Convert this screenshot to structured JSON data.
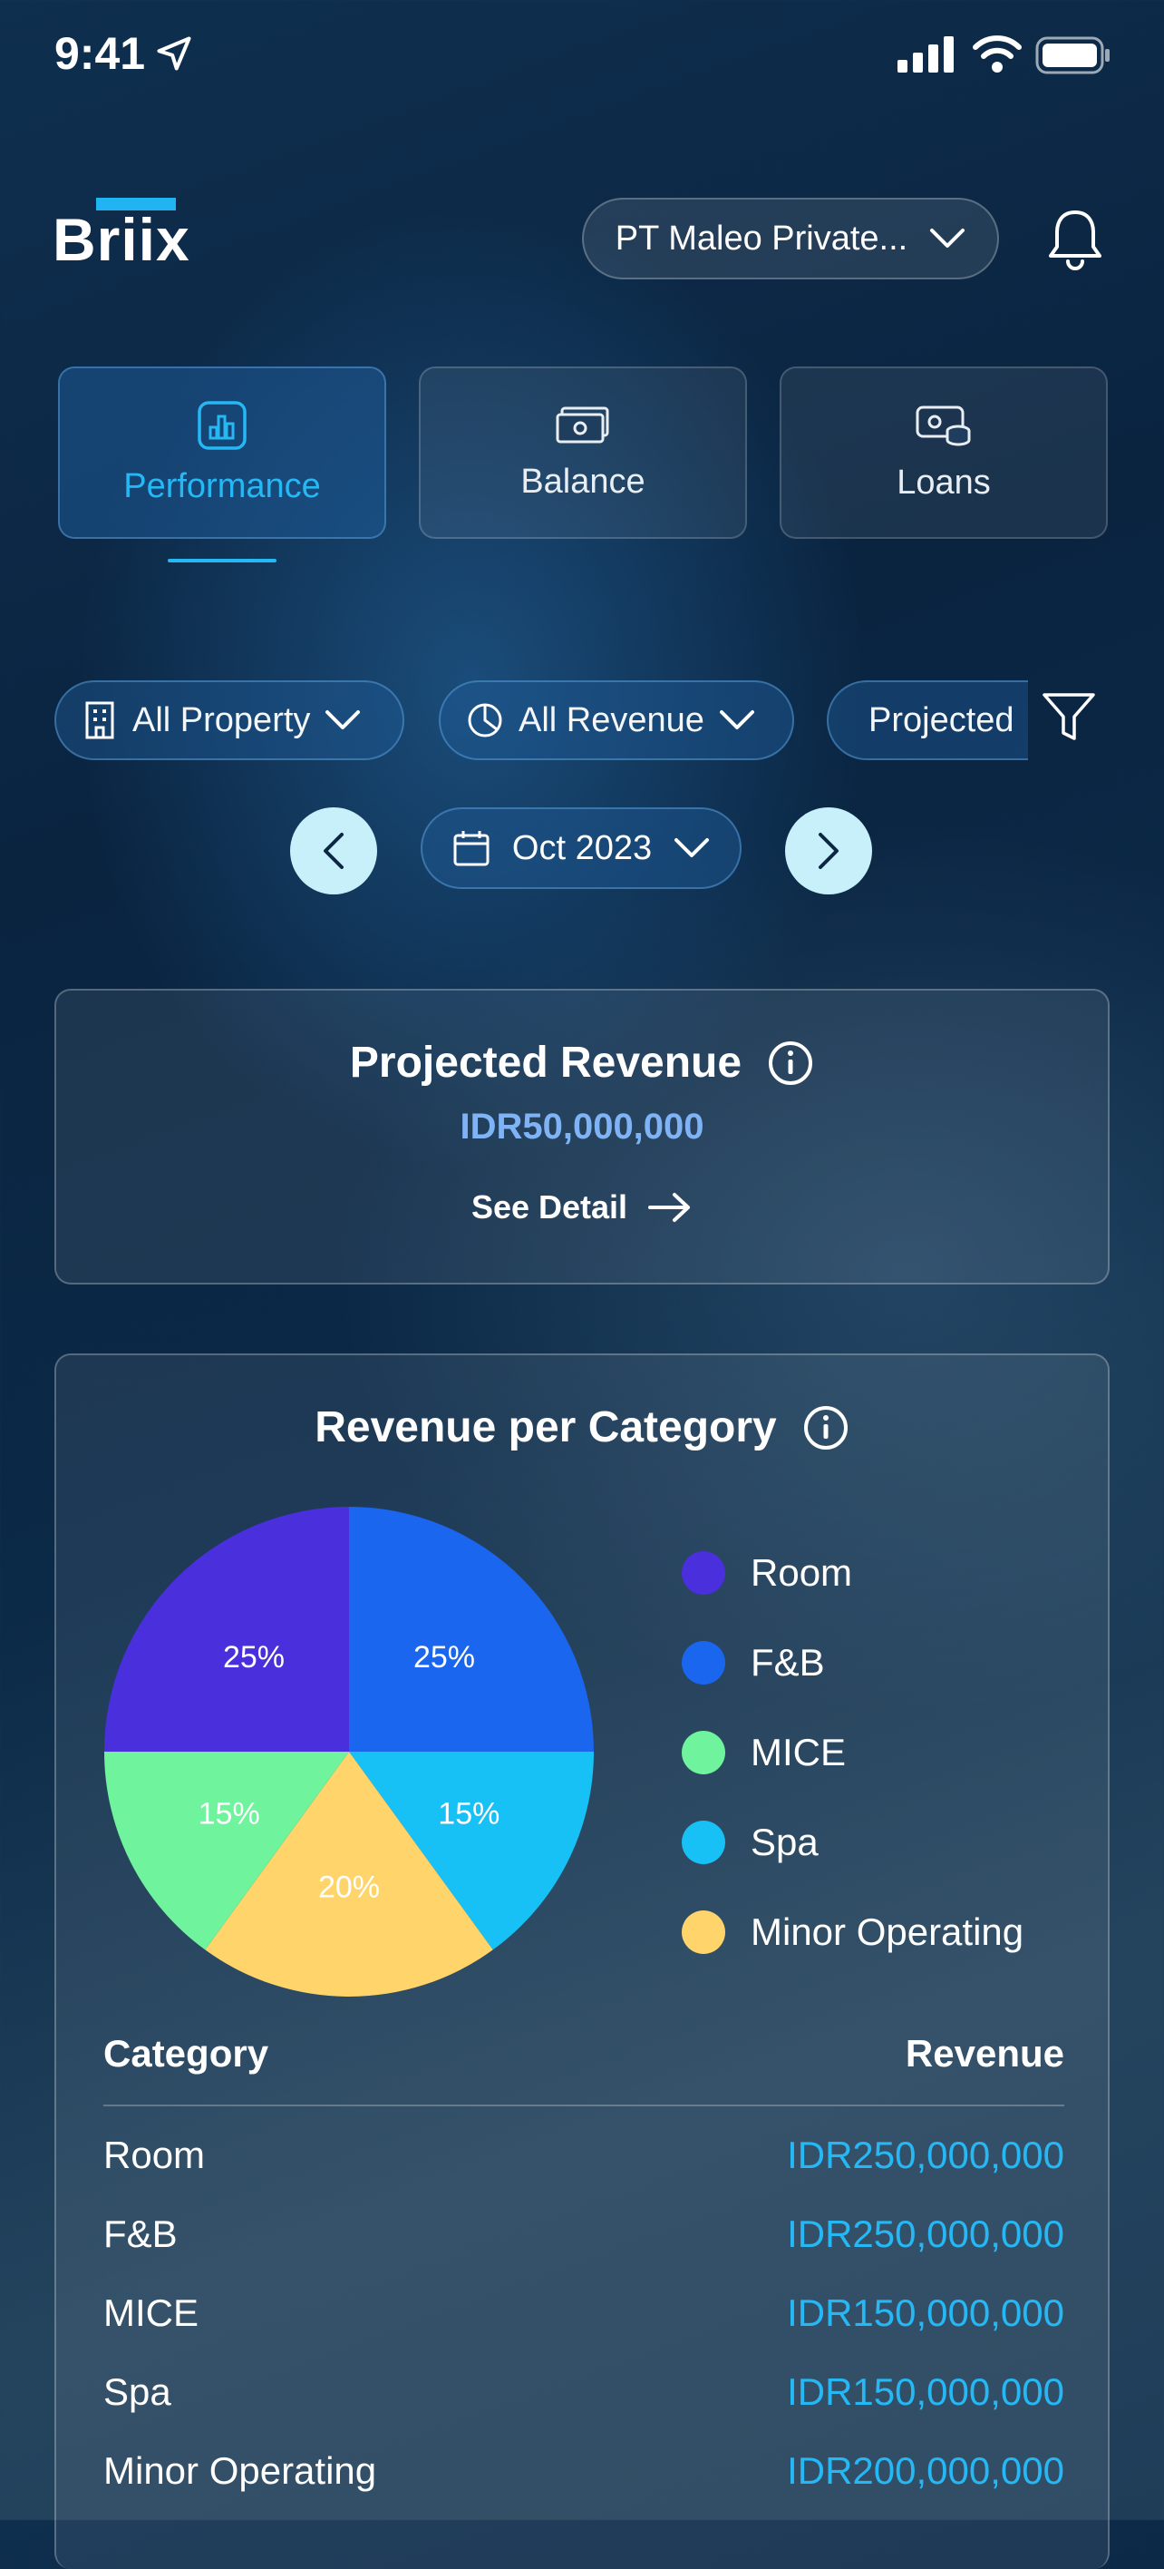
{
  "status_bar": {
    "time": "9:41"
  },
  "header": {
    "logo_text": "Briix",
    "company_selector": "PT Maleo Private..."
  },
  "tabs": [
    {
      "label": "Performance",
      "icon": "bar-chart-icon",
      "active": true
    },
    {
      "label": "Balance",
      "icon": "cash-icon",
      "active": false
    },
    {
      "label": "Loans",
      "icon": "coins-icon",
      "active": false
    }
  ],
  "filters": {
    "property": "All Property",
    "revenue": "All Revenue",
    "projection": "Projected"
  },
  "date_selector": {
    "value": "Oct 2023"
  },
  "projected_revenue": {
    "title": "Projected Revenue",
    "amount": "IDR50,000,000",
    "see_detail": "See Detail"
  },
  "revenue_per_category": {
    "title": "Revenue per Category",
    "table_header": {
      "category": "Category",
      "revenue": "Revenue"
    }
  },
  "chart_data": {
    "type": "pie",
    "title": "Revenue per Category",
    "categories": [
      "Room",
      "F&B",
      "MICE",
      "Spa",
      "Minor Operating"
    ],
    "values": [
      25,
      25,
      15,
      15,
      20
    ],
    "labels": [
      "25%",
      "25%",
      "15%",
      "15%",
      "20%"
    ],
    "colors": [
      "#4a2fdc",
      "#1a66ee",
      "#6ff39c",
      "#17c1f5",
      "#ffd46a"
    ],
    "revenues": [
      "IDR250,000,000",
      "IDR250,000,000",
      "IDR150,000,000",
      "IDR150,000,000",
      "IDR200,000,000"
    ],
    "legend_position": "right"
  }
}
